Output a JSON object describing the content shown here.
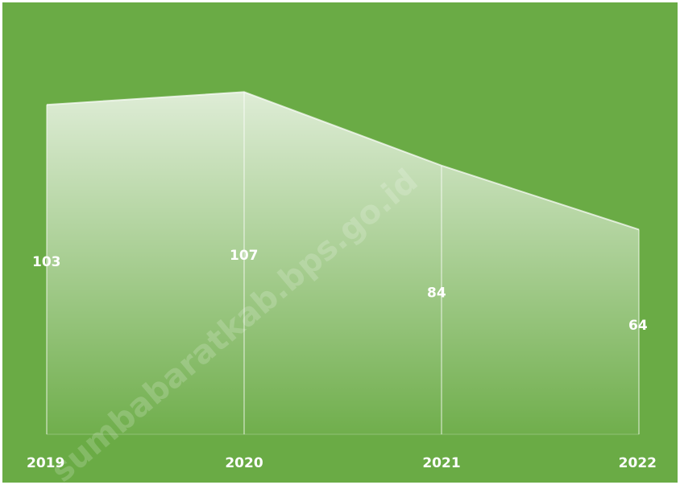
{
  "chart_data": {
    "type": "area",
    "categories": [
      "2019",
      "2020",
      "2021",
      "2022"
    ],
    "values": [
      103,
      107,
      84,
      64
    ],
    "title": "",
    "xlabel": "",
    "ylabel": "",
    "ylim": [
      0,
      135
    ],
    "grid": false,
    "legend": "none",
    "data_labels": [
      "103",
      "107",
      "84",
      "64"
    ]
  },
  "watermark": "sumbabaratkab.bps.go.id",
  "colors": {
    "background": "#6aab45",
    "area_top": "#f2f8ec",
    "area_bottom": "#6aab45",
    "labels": "#ffffff"
  }
}
